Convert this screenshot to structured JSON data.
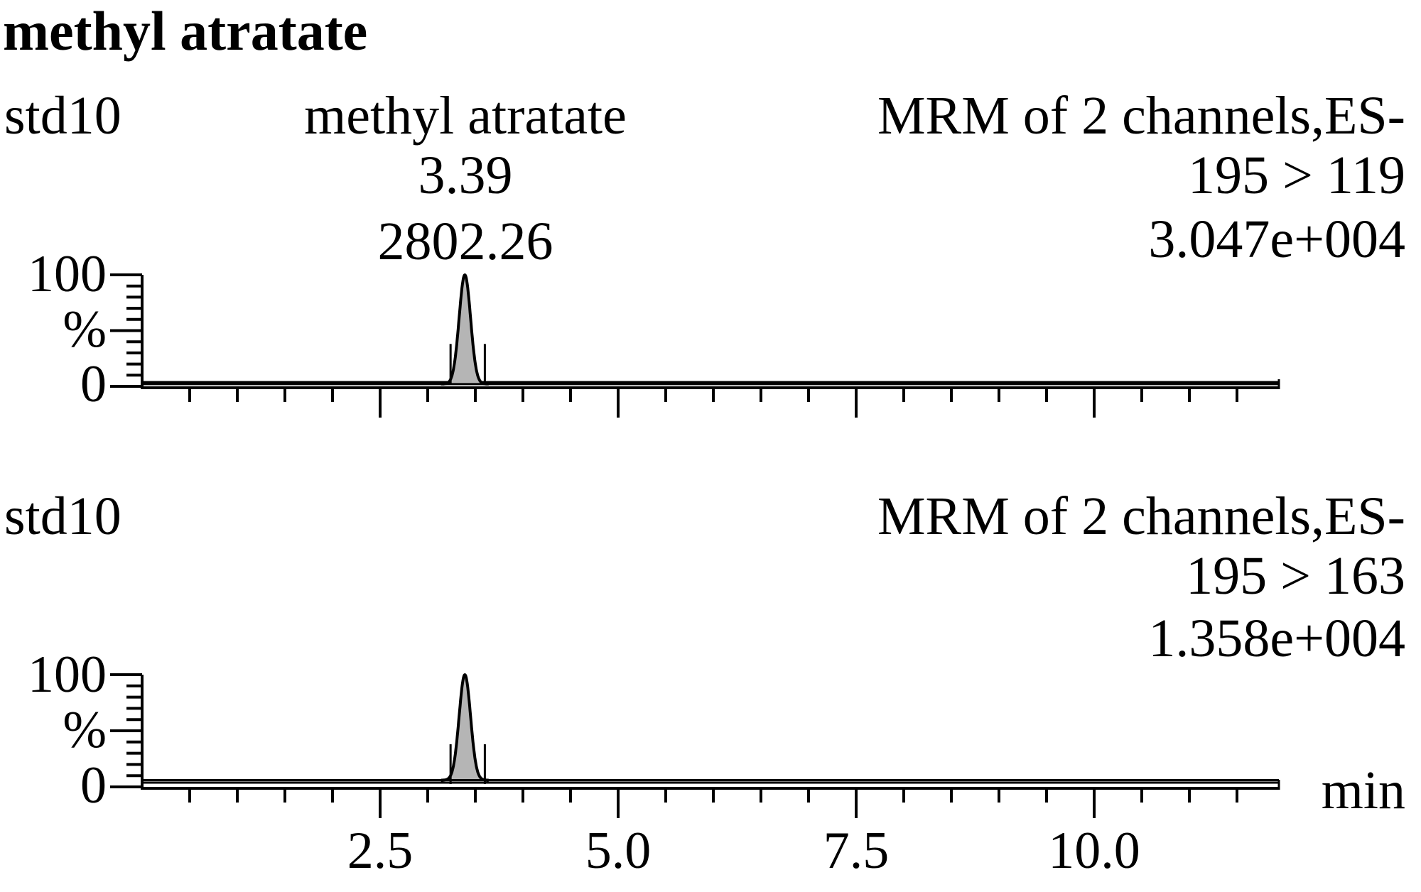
{
  "title": "methyl atratate",
  "x_unit": "min",
  "chart_data": [
    {
      "type": "line",
      "sample": "std10",
      "compound_label": "methyl atratate",
      "peak_rt": "3.39",
      "peak_area": "2802.26",
      "header": "MRM of 2 channels,ES-",
      "transition": "195 > 119",
      "max_intensity": "3.047e+004",
      "y_ticks": [
        "100",
        "%",
        "0"
      ],
      "ylim": [
        0,
        100
      ],
      "xlim": [
        0,
        12
      ],
      "peak": {
        "rt": 3.39,
        "height": 100,
        "width": 0.06
      },
      "integration_marks": [
        3.24,
        3.6
      ],
      "baseline": 2,
      "show_x_labels": false
    },
    {
      "type": "line",
      "sample": "std10",
      "compound_label": "",
      "peak_rt": "",
      "peak_area": "",
      "header": "MRM of 2 channels,ES-",
      "transition": "195 > 163",
      "max_intensity": "1.358e+004",
      "y_ticks": [
        "100",
        "%",
        "0"
      ],
      "ylim": [
        0,
        100
      ],
      "xlim": [
        0,
        12
      ],
      "peak": {
        "rt": 3.39,
        "height": 100,
        "width": 0.06
      },
      "integration_marks": [
        3.24,
        3.6
      ],
      "baseline": 6,
      "show_x_labels": true
    }
  ],
  "x_tick_labels": [
    {
      "value": 2.5,
      "label": "2.5"
    },
    {
      "value": 5.0,
      "label": "5.0"
    },
    {
      "value": 7.5,
      "label": "7.5"
    },
    {
      "value": 10.0,
      "label": "10.0"
    }
  ]
}
